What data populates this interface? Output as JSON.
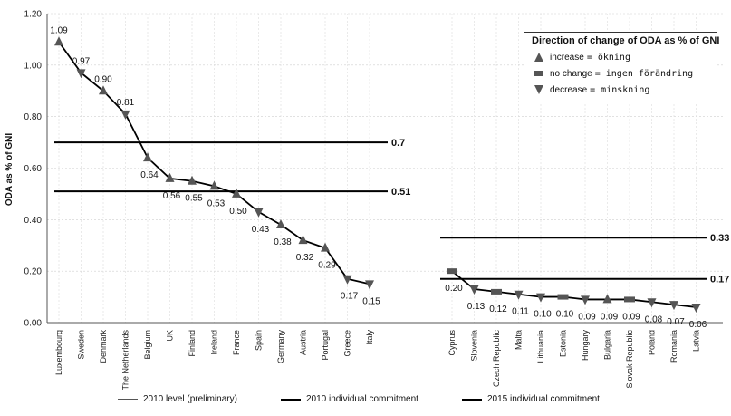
{
  "chart_data": {
    "type": "line",
    "ylabel": "ODA as % of GNI",
    "ylim": [
      0,
      1.2
    ],
    "yticks": [
      "0.00",
      "0.20",
      "0.40",
      "0.60",
      "0.80",
      "1.00",
      "1.20"
    ],
    "grid": true,
    "groups": [
      {
        "categories": [
          "Luxembourg",
          "Sweden",
          "Denmark",
          "The Netherlands",
          "Belgium",
          "UK",
          "Finland",
          "Ireland",
          "France",
          "Spain",
          "Germany",
          "Austria",
          "Portugal",
          "Greece",
          "Italy"
        ],
        "values": [
          1.09,
          0.97,
          0.9,
          0.81,
          0.64,
          0.56,
          0.55,
          0.53,
          0.5,
          0.43,
          0.38,
          0.32,
          0.29,
          0.17,
          0.15
        ],
        "labels": [
          "1.09",
          "0.97",
          "0.90",
          "0.81",
          "0.64",
          "0.56",
          "0.55",
          "0.53",
          "0.50",
          "0.43",
          "0.38",
          "0.32",
          "0.29",
          "0.17",
          "0.15"
        ],
        "direction": [
          "increase",
          "decrease",
          "increase",
          "decrease",
          "increase",
          "increase",
          "increase",
          "increase",
          "increase",
          "decrease",
          "increase",
          "increase",
          "increase",
          "decrease",
          "decrease"
        ],
        "commitment_2010": 0.51,
        "commitment_2015": 0.7,
        "commitment_2010_label": "0.51",
        "commitment_2015_label": "0.7"
      },
      {
        "categories": [
          "Cyprus",
          "Slovenia",
          "Czech Republic",
          "Malta",
          "Lithuania",
          "Estonia",
          "Hungary",
          "Bulgaria",
          "Slovak Republic",
          "Poland",
          "Romania",
          "Latvia"
        ],
        "values": [
          0.2,
          0.13,
          0.12,
          0.11,
          0.1,
          0.1,
          0.09,
          0.09,
          0.09,
          0.08,
          0.07,
          0.06
        ],
        "labels": [
          "0.20",
          "0.13",
          "0.12",
          "0.11",
          "0.10",
          "0.10",
          "0.09",
          "0.09",
          "0.09",
          "0.08",
          "0.07",
          "0.06"
        ],
        "direction": [
          "nochange",
          "decrease",
          "nochange",
          "decrease",
          "decrease",
          "nochange",
          "decrease",
          "increase",
          "nochange",
          "decrease",
          "decrease",
          "decrease"
        ],
        "commitment_2010": 0.17,
        "commitment_2015": 0.33,
        "commitment_2010_label": "0.17",
        "commitment_2015_label": "0.33"
      }
    ],
    "legend": {
      "title": "Direction of change of ODA as % of GNI",
      "position": "top-right",
      "items": [
        {
          "symbol": "increase",
          "label": "increase",
          "handwritten": "= ökning"
        },
        {
          "symbol": "nochange",
          "label": "no change",
          "handwritten": "= ingen förändring"
        },
        {
          "symbol": "decrease",
          "label": "decrease",
          "handwritten": "= minskning"
        }
      ]
    },
    "bottom_legend": [
      "2010 level (preliminary)",
      "2010 individual commitment",
      "2015 individual commitment"
    ],
    "colors": {
      "marker": "#555555",
      "line": "#000000"
    }
  }
}
